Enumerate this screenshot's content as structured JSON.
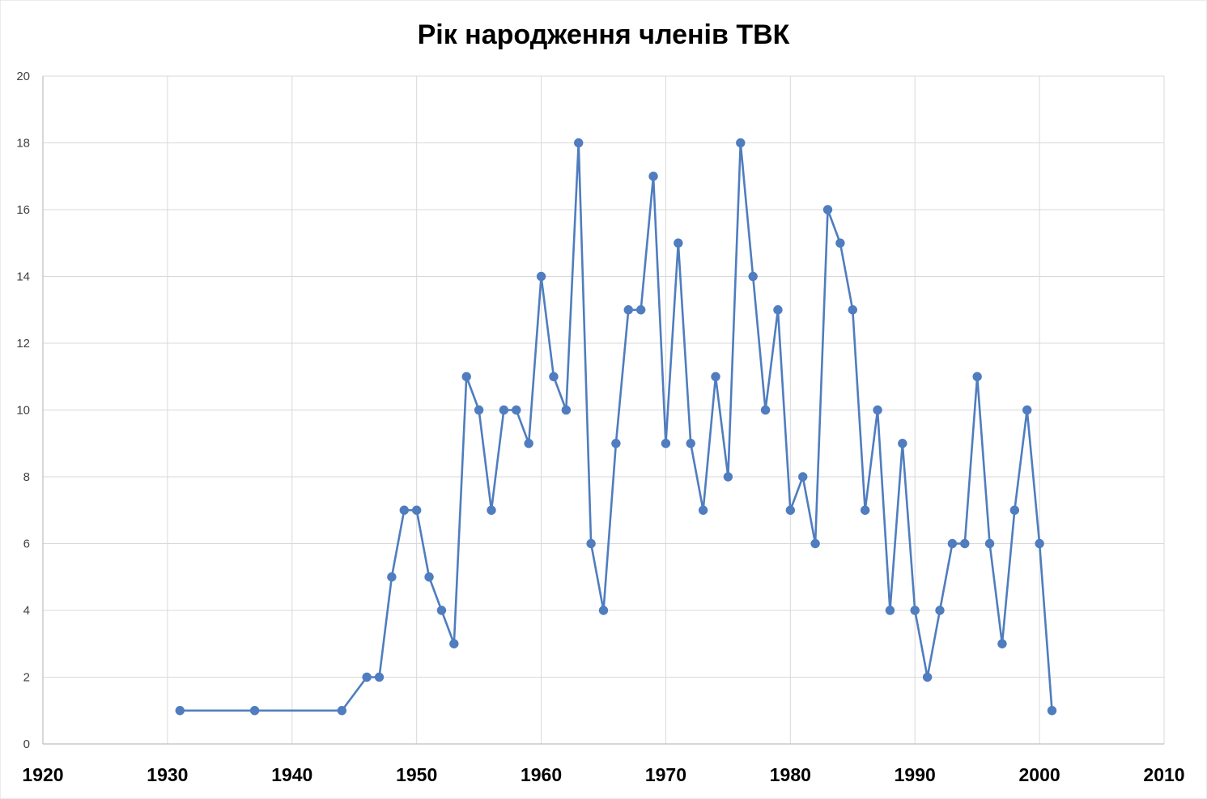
{
  "chart_data": {
    "type": "line",
    "title": "Рік народження членів ТВК",
    "xlabel": "",
    "ylabel": "",
    "xlim": [
      1920,
      2010
    ],
    "ylim": [
      0,
      20
    ],
    "x_ticks": [
      "1920",
      "1930",
      "1940",
      "1950",
      "1960",
      "1970",
      "1980",
      "1990",
      "2000",
      "2010"
    ],
    "y_ticks": [
      "0",
      "2",
      "4",
      "6",
      "8",
      "10",
      "12",
      "14",
      "16",
      "18",
      "20"
    ],
    "grid": true,
    "legend": "none",
    "markers": true,
    "series_color": "#4f7dbf",
    "series": [
      {
        "x": [
          1931,
          1937,
          1944,
          1946,
          1947,
          1948,
          1949,
          1950,
          1951,
          1952,
          1953,
          1954,
          1955,
          1956,
          1957,
          1958,
          1959,
          1960,
          1961,
          1962,
          1963,
          1964,
          1965,
          1966,
          1967,
          1968,
          1969,
          1970,
          1971,
          1972,
          1973,
          1974,
          1975,
          1976,
          1977,
          1978,
          1979,
          1980,
          1981,
          1982,
          1983,
          1984,
          1985,
          1986,
          1987,
          1988,
          1989,
          1990,
          1991,
          1992,
          1993,
          1994,
          1995,
          1996,
          1997,
          1998,
          1999,
          2000,
          2001
        ],
        "values": [
          1,
          1,
          1,
          2,
          2,
          5,
          7,
          7,
          5,
          4,
          3,
          11,
          10,
          7,
          10,
          10,
          9,
          14,
          11,
          10,
          18,
          6,
          4,
          9,
          13,
          13,
          17,
          9,
          15,
          9,
          7,
          11,
          8,
          18,
          14,
          10,
          13,
          7,
          8,
          6,
          16,
          15,
          13,
          7,
          10,
          4,
          9,
          4,
          2,
          4,
          6,
          6,
          11,
          6,
          3,
          7,
          10,
          6,
          1
        ]
      }
    ]
  }
}
